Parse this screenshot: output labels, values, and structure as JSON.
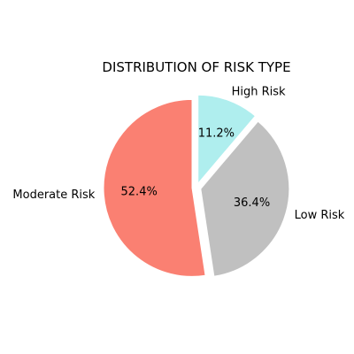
{
  "chart_data": {
    "type": "pie",
    "title": "DISTRIBUTION OF RISK TYPE",
    "slices": [
      {
        "label": "High Risk",
        "value": 11.2,
        "pct_label": "11.2%",
        "color": "#afeeee",
        "exploded": true
      },
      {
        "label": "Low Risk",
        "value": 36.4,
        "pct_label": "36.4%",
        "color": "#c0c0c0",
        "exploded": true
      },
      {
        "label": "Moderate Risk",
        "value": 52.4,
        "pct_label": "52.4%",
        "color": "#fa8072",
        "exploded": true
      }
    ],
    "start_angle_deg": 90,
    "direction": "clockwise",
    "wedge_edge_color": "#ffffff"
  }
}
